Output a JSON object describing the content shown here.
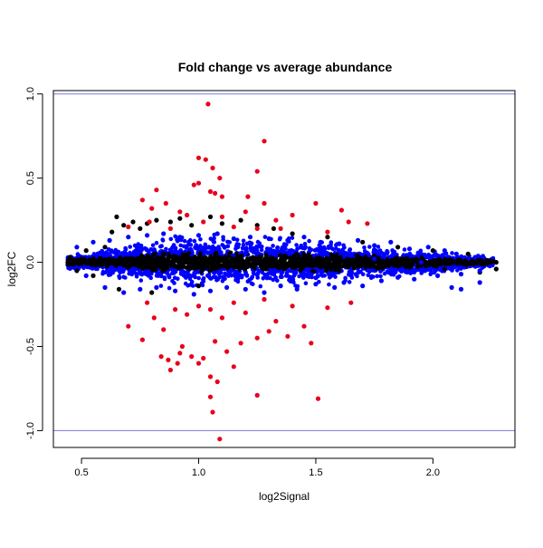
{
  "chart_data": {
    "type": "scatter",
    "title": "Fold change vs average abundance",
    "xlabel": "log2Signal",
    "ylabel": "log2FC",
    "xlim": [
      0.38,
      2.35
    ],
    "ylim": [
      -1.1,
      1.02
    ],
    "x_ticks": [
      0.5,
      1.0,
      1.5,
      2.0
    ],
    "x_tick_labels": [
      "0.5",
      "1.0",
      "1.5",
      "2.0"
    ],
    "y_ticks": [
      -1.0,
      -0.5,
      0.0,
      0.5,
      1.0
    ],
    "y_tick_labels": [
      "-1.0",
      "-0.5",
      "0.0",
      "0.5",
      "1.0"
    ],
    "reference_lines": {
      "y": [
        1.0,
        -1.0
      ],
      "color": "#7878e0"
    },
    "grid": false,
    "colors": {
      "black": "#000000",
      "blue": "#0000ff",
      "red": "#e8001c"
    },
    "series": [
      {
        "color": "black",
        "points": [
          [
            0.45,
            0.03
          ],
          [
            0.48,
            -0.05
          ],
          [
            0.52,
            0.07
          ],
          [
            0.55,
            -0.08
          ],
          [
            0.6,
            0.09
          ],
          [
            0.63,
            0.18
          ],
          [
            0.65,
            0.27
          ],
          [
            0.68,
            0.22
          ],
          [
            0.72,
            0.24
          ],
          [
            0.75,
            0.2
          ],
          [
            0.78,
            0.23
          ],
          [
            0.82,
            0.25
          ],
          [
            0.88,
            0.24
          ],
          [
            0.92,
            0.26
          ],
          [
            0.97,
            0.22
          ],
          [
            1.05,
            0.27
          ],
          [
            1.1,
            0.23
          ],
          [
            1.18,
            0.25
          ],
          [
            1.25,
            0.22
          ],
          [
            1.32,
            0.2
          ],
          [
            1.4,
            0.17
          ],
          [
            1.55,
            0.15
          ],
          [
            1.7,
            0.12
          ],
          [
            1.85,
            0.09
          ],
          [
            2.0,
            0.07
          ],
          [
            2.15,
            0.05
          ],
          [
            2.27,
            0.0
          ],
          [
            2.27,
            -0.04
          ],
          [
            2.2,
            -0.06
          ],
          [
            2.05,
            -0.04
          ],
          [
            1.9,
            -0.03
          ],
          [
            1.6,
            -0.05
          ],
          [
            1.35,
            -0.02
          ],
          [
            1.15,
            -0.03
          ],
          [
            0.95,
            0.0
          ],
          [
            0.85,
            0.02
          ],
          [
            0.7,
            -0.03
          ],
          [
            0.58,
            0.0
          ],
          [
            0.5,
            0.02
          ],
          [
            0.66,
            -0.16
          ],
          [
            0.8,
            -0.18
          ],
          [
            1.0,
            -0.14
          ]
        ]
      },
      {
        "color": "blue",
        "points": [
          [
            0.48,
            0.09
          ],
          [
            0.55,
            0.12
          ],
          [
            0.62,
            0.13
          ],
          [
            0.7,
            0.15
          ],
          [
            0.78,
            0.16
          ],
          [
            0.85,
            0.17
          ],
          [
            0.92,
            0.15
          ],
          [
            1.0,
            0.16
          ],
          [
            1.08,
            0.17
          ],
          [
            1.15,
            0.14
          ],
          [
            1.22,
            0.15
          ],
          [
            1.3,
            0.14
          ],
          [
            1.38,
            0.13
          ],
          [
            1.45,
            0.15
          ],
          [
            1.52,
            0.12
          ],
          [
            1.6,
            0.11
          ],
          [
            1.68,
            0.13
          ],
          [
            1.75,
            0.1
          ],
          [
            1.82,
            0.12
          ],
          [
            1.9,
            0.08
          ],
          [
            1.98,
            0.09
          ],
          [
            2.05,
            0.07
          ],
          [
            2.1,
            0.05
          ],
          [
            2.18,
            0.03
          ],
          [
            0.52,
            -0.08
          ],
          [
            0.6,
            -0.15
          ],
          [
            0.68,
            -0.18
          ],
          [
            0.75,
            -0.16
          ],
          [
            0.82,
            -0.15
          ],
          [
            0.9,
            -0.17
          ],
          [
            0.98,
            -0.19
          ],
          [
            1.05,
            -0.17
          ],
          [
            1.12,
            -0.15
          ],
          [
            1.2,
            -0.16
          ],
          [
            1.28,
            -0.18
          ],
          [
            1.35,
            -0.14
          ],
          [
            1.42,
            -0.16
          ],
          [
            1.5,
            -0.13
          ],
          [
            1.58,
            -0.15
          ],
          [
            1.62,
            -0.12
          ],
          [
            1.7,
            -0.14
          ],
          [
            1.78,
            -0.11
          ],
          [
            1.85,
            -0.09
          ],
          [
            1.92,
            -0.1
          ],
          [
            2.02,
            -0.08
          ],
          [
            2.12,
            -0.07
          ],
          [
            2.2,
            -0.05
          ],
          [
            2.08,
            -0.15
          ],
          [
            2.12,
            -0.16
          ],
          [
            2.2,
            -0.12
          ],
          [
            1.75,
            0.02
          ],
          [
            1.95,
            0.0
          ],
          [
            1.2,
            0.05
          ],
          [
            0.9,
            -0.05
          ],
          [
            1.45,
            -0.07
          ],
          [
            1.65,
            0.05
          ]
        ]
      },
      {
        "color": "red",
        "points": [
          [
            1.04,
            0.94
          ],
          [
            1.28,
            0.72
          ],
          [
            1.0,
            0.62
          ],
          [
            1.03,
            0.61
          ],
          [
            1.06,
            0.56
          ],
          [
            1.25,
            0.54
          ],
          [
            1.09,
            0.5
          ],
          [
            1.0,
            0.47
          ],
          [
            0.98,
            0.46
          ],
          [
            1.05,
            0.42
          ],
          [
            0.82,
            0.43
          ],
          [
            1.07,
            0.41
          ],
          [
            1.1,
            0.39
          ],
          [
            0.76,
            0.37
          ],
          [
            1.21,
            0.39
          ],
          [
            0.86,
            0.35
          ],
          [
            1.5,
            0.35
          ],
          [
            1.28,
            0.35
          ],
          [
            0.8,
            0.32
          ],
          [
            0.92,
            0.3
          ],
          [
            1.2,
            0.3
          ],
          [
            1.4,
            0.28
          ],
          [
            1.61,
            0.31
          ],
          [
            1.64,
            0.24
          ],
          [
            1.72,
            0.23
          ],
          [
            0.95,
            0.28
          ],
          [
            1.1,
            0.27
          ],
          [
            1.33,
            0.25
          ],
          [
            0.7,
            0.21
          ],
          [
            0.88,
            0.2
          ],
          [
            1.15,
            0.21
          ],
          [
            1.35,
            0.2
          ],
          [
            1.55,
            0.18
          ],
          [
            0.79,
            0.24
          ],
          [
            1.02,
            0.24
          ],
          [
            1.25,
            0.2
          ],
          [
            0.7,
            -0.38
          ],
          [
            0.78,
            -0.24
          ],
          [
            0.81,
            -0.33
          ],
          [
            0.85,
            -0.4
          ],
          [
            0.9,
            -0.28
          ],
          [
            0.95,
            -0.31
          ],
          [
            1.0,
            -0.26
          ],
          [
            1.05,
            -0.28
          ],
          [
            1.1,
            -0.33
          ],
          [
            1.15,
            -0.24
          ],
          [
            1.2,
            -0.3
          ],
          [
            1.28,
            -0.22
          ],
          [
            1.33,
            -0.35
          ],
          [
            1.4,
            -0.26
          ],
          [
            1.45,
            -0.38
          ],
          [
            1.55,
            -0.27
          ],
          [
            1.65,
            -0.24
          ],
          [
            1.25,
            -0.45
          ],
          [
            1.18,
            -0.48
          ],
          [
            1.07,
            -0.47
          ],
          [
            0.93,
            -0.5
          ],
          [
            0.92,
            -0.54
          ],
          [
            0.84,
            -0.56
          ],
          [
            0.87,
            -0.58
          ],
          [
            0.91,
            -0.6
          ],
          [
            0.88,
            -0.64
          ],
          [
            0.97,
            -0.56
          ],
          [
            1.0,
            -0.6
          ],
          [
            1.02,
            -0.57
          ],
          [
            1.12,
            -0.53
          ],
          [
            1.15,
            -0.62
          ],
          [
            1.48,
            -0.48
          ],
          [
            1.05,
            -0.68
          ],
          [
            1.08,
            -0.71
          ],
          [
            1.05,
            -0.8
          ],
          [
            1.25,
            -0.79
          ],
          [
            1.06,
            -0.89
          ],
          [
            1.51,
            -0.81
          ],
          [
            1.09,
            -1.05
          ],
          [
            1.38,
            -0.44
          ],
          [
            0.76,
            -0.46
          ],
          [
            1.3,
            -0.41
          ]
        ]
      }
    ]
  }
}
